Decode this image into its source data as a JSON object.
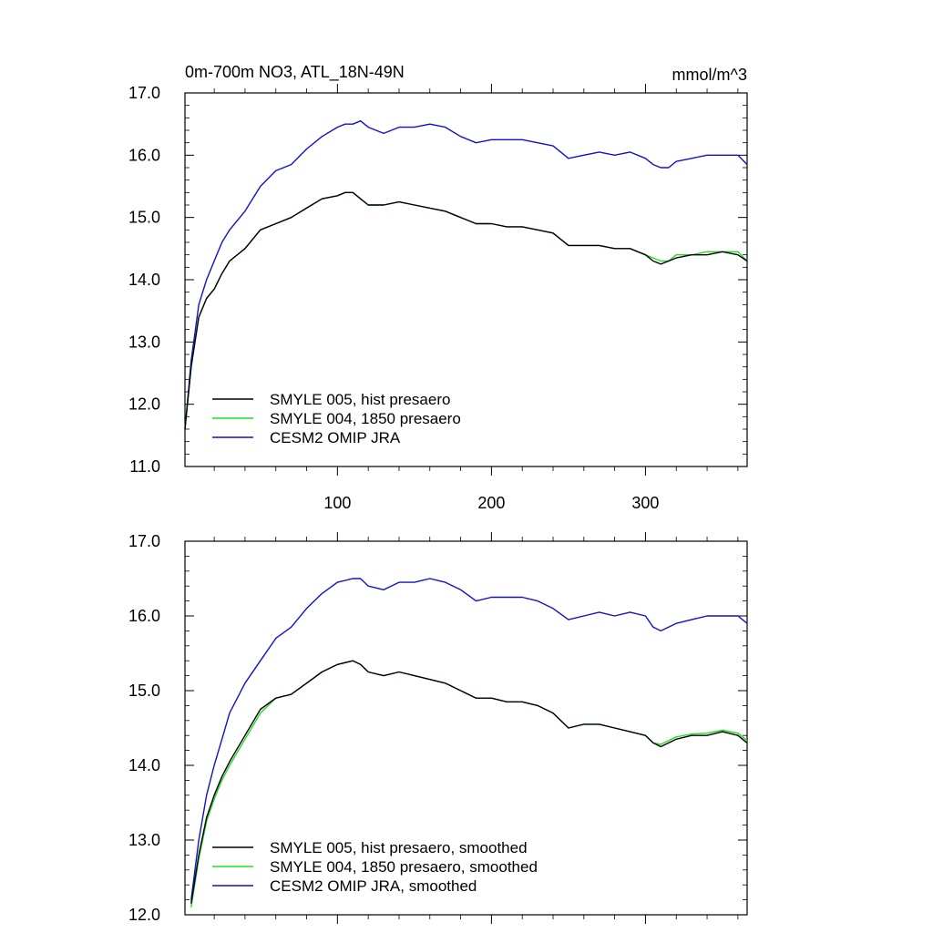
{
  "chart_data": [
    {
      "type": "line",
      "title_left": "0m-700m NO3, ATL_18N-49N",
      "title_right": "mmol/m^3",
      "xlim": [
        1,
        366
      ],
      "ylim": [
        11.0,
        17.0
      ],
      "xticks": [
        100,
        200,
        300
      ],
      "xtick_labels": [
        "100",
        "200",
        "300"
      ],
      "yticks": [
        11.0,
        12.0,
        13.0,
        14.0,
        15.0,
        16.0,
        17.0
      ],
      "ytick_labels": [
        "11.0",
        "12.0",
        "13.0",
        "14.0",
        "15.0",
        "16.0",
        "17.0"
      ],
      "legend_position": "bottom-left",
      "series": [
        {
          "name": "SMYLE 005, hist presaero",
          "color": "#000000",
          "x": [
            1,
            5,
            10,
            15,
            20,
            25,
            30,
            40,
            50,
            60,
            70,
            80,
            90,
            100,
            105,
            110,
            115,
            120,
            130,
            140,
            150,
            160,
            170,
            180,
            190,
            200,
            210,
            220,
            230,
            240,
            250,
            260,
            270,
            280,
            290,
            300,
            305,
            310,
            315,
            320,
            330,
            340,
            350,
            360,
            366
          ],
          "y": [
            11.6,
            12.6,
            13.4,
            13.7,
            13.85,
            14.1,
            14.3,
            14.5,
            14.8,
            14.9,
            15.0,
            15.15,
            15.3,
            15.35,
            15.4,
            15.4,
            15.3,
            15.2,
            15.2,
            15.25,
            15.2,
            15.15,
            15.1,
            15.0,
            14.9,
            14.9,
            14.85,
            14.85,
            14.8,
            14.75,
            14.55,
            14.55,
            14.55,
            14.5,
            14.5,
            14.4,
            14.3,
            14.25,
            14.3,
            14.35,
            14.4,
            14.4,
            14.45,
            14.4,
            14.3
          ]
        },
        {
          "name": "SMYLE 004, 1850 presaero",
          "color": "#22dd22",
          "x": [
            1,
            5,
            10,
            15,
            20,
            25,
            30,
            40,
            50,
            60,
            70,
            80,
            90,
            100,
            105,
            110,
            115,
            120,
            130,
            140,
            150,
            160,
            170,
            180,
            190,
            200,
            210,
            220,
            230,
            240,
            250,
            260,
            270,
            280,
            290,
            300,
            305,
            310,
            315,
            320,
            330,
            340,
            350,
            360,
            366
          ],
          "y": [
            11.6,
            12.6,
            13.4,
            13.7,
            13.85,
            14.1,
            14.3,
            14.5,
            14.8,
            14.9,
            15.0,
            15.15,
            15.3,
            15.35,
            15.4,
            15.4,
            15.3,
            15.2,
            15.2,
            15.25,
            15.2,
            15.15,
            15.1,
            15.0,
            14.9,
            14.9,
            14.85,
            14.85,
            14.8,
            14.75,
            14.55,
            14.55,
            14.55,
            14.5,
            14.5,
            14.4,
            14.35,
            14.3,
            14.3,
            14.4,
            14.4,
            14.45,
            14.45,
            14.45,
            14.3
          ]
        },
        {
          "name": "CESM2 OMIP JRA",
          "color": "#1111cc",
          "x": [
            1,
            5,
            10,
            15,
            20,
            25,
            30,
            40,
            50,
            60,
            70,
            80,
            90,
            100,
            105,
            110,
            115,
            120,
            130,
            140,
            150,
            160,
            170,
            180,
            190,
            200,
            210,
            220,
            230,
            240,
            250,
            260,
            270,
            280,
            290,
            300,
            305,
            310,
            315,
            320,
            330,
            340,
            350,
            360,
            366
          ],
          "y": [
            11.6,
            12.7,
            13.6,
            14.0,
            14.3,
            14.6,
            14.8,
            15.1,
            15.5,
            15.75,
            15.85,
            16.1,
            16.3,
            16.45,
            16.5,
            16.5,
            16.55,
            16.45,
            16.35,
            16.45,
            16.45,
            16.5,
            16.45,
            16.3,
            16.2,
            16.25,
            16.25,
            16.25,
            16.2,
            16.15,
            15.95,
            16.0,
            16.05,
            16.0,
            16.05,
            15.95,
            15.85,
            15.8,
            15.8,
            15.9,
            15.95,
            16.0,
            16.0,
            16.0,
            15.85
          ]
        }
      ]
    },
    {
      "type": "line",
      "xlim": [
        1,
        366
      ],
      "ylim": [
        12.0,
        17.0
      ],
      "xticks": [
        100,
        200,
        300
      ],
      "yticks": [
        12.0,
        13.0,
        14.0,
        15.0,
        16.0,
        17.0
      ],
      "ytick_labels": [
        "12.0",
        "13.0",
        "14.0",
        "15.0",
        "16.0",
        "17.0"
      ],
      "legend_position": "bottom-left",
      "series": [
        {
          "name": "SMYLE 005, hist presaero, smoothed",
          "color": "#000000",
          "x": [
            5,
            10,
            15,
            20,
            25,
            30,
            40,
            50,
            60,
            70,
            80,
            90,
            100,
            110,
            115,
            120,
            130,
            140,
            150,
            160,
            170,
            180,
            190,
            200,
            210,
            220,
            230,
            240,
            250,
            260,
            270,
            280,
            290,
            300,
            305,
            310,
            320,
            330,
            340,
            350,
            360,
            366
          ],
          "y": [
            12.15,
            12.8,
            13.3,
            13.6,
            13.85,
            14.05,
            14.4,
            14.75,
            14.9,
            14.95,
            15.1,
            15.25,
            15.35,
            15.4,
            15.35,
            15.25,
            15.2,
            15.25,
            15.2,
            15.15,
            15.1,
            15.0,
            14.9,
            14.9,
            14.85,
            14.85,
            14.8,
            14.7,
            14.5,
            14.55,
            14.55,
            14.5,
            14.45,
            14.4,
            14.3,
            14.25,
            14.35,
            14.4,
            14.4,
            14.45,
            14.4,
            14.3
          ]
        },
        {
          "name": "SMYLE 004, 1850 presaero, smoothed",
          "color": "#22dd22",
          "x": [
            5,
            10,
            15,
            20,
            25,
            30,
            40,
            50,
            60,
            70,
            80,
            90,
            100,
            110,
            115,
            120,
            130,
            140,
            150,
            160,
            170,
            180,
            190,
            200,
            210,
            220,
            230,
            240,
            250,
            260,
            270,
            280,
            290,
            300,
            305,
            310,
            320,
            330,
            340,
            350,
            360,
            366
          ],
          "y": [
            12.1,
            12.75,
            13.25,
            13.55,
            13.8,
            14.0,
            14.35,
            14.7,
            14.9,
            14.95,
            15.1,
            15.25,
            15.35,
            15.4,
            15.35,
            15.25,
            15.2,
            15.25,
            15.2,
            15.15,
            15.1,
            15.0,
            14.9,
            14.9,
            14.85,
            14.85,
            14.8,
            14.7,
            14.5,
            14.55,
            14.55,
            14.5,
            14.45,
            14.4,
            14.3,
            14.28,
            14.38,
            14.42,
            14.43,
            14.47,
            14.43,
            14.33
          ]
        },
        {
          "name": "CESM2 OMIP JRA, smoothed",
          "color": "#1111cc",
          "x": [
            5,
            10,
            15,
            20,
            25,
            30,
            40,
            50,
            60,
            70,
            80,
            90,
            100,
            110,
            115,
            120,
            130,
            140,
            150,
            160,
            170,
            180,
            190,
            200,
            210,
            220,
            230,
            240,
            250,
            260,
            270,
            280,
            290,
            300,
            305,
            310,
            320,
            330,
            340,
            350,
            360,
            366
          ],
          "y": [
            12.2,
            13.0,
            13.6,
            14.0,
            14.35,
            14.7,
            15.1,
            15.4,
            15.7,
            15.85,
            16.1,
            16.3,
            16.45,
            16.5,
            16.5,
            16.4,
            16.35,
            16.45,
            16.45,
            16.5,
            16.45,
            16.35,
            16.2,
            16.25,
            16.25,
            16.25,
            16.2,
            16.1,
            15.95,
            16.0,
            16.05,
            16.0,
            16.05,
            16.0,
            15.85,
            15.8,
            15.9,
            15.95,
            16.0,
            16.0,
            16.0,
            15.9
          ]
        }
      ]
    }
  ]
}
